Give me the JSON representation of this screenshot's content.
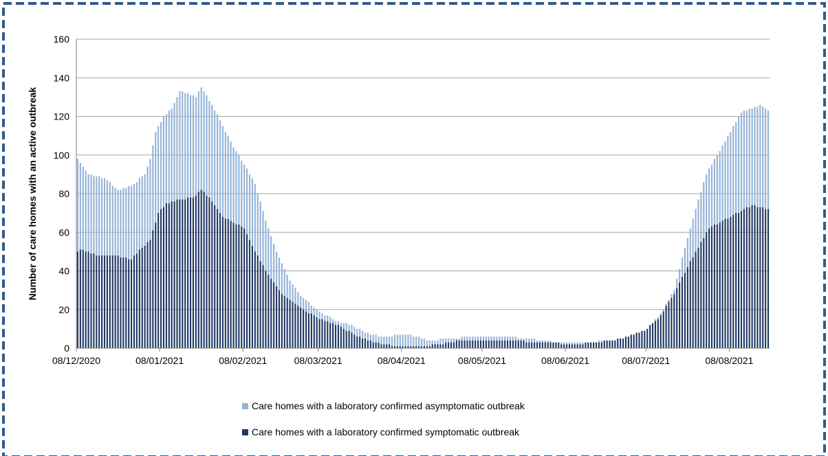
{
  "colors": {
    "asymptomatic": "#95B3D7",
    "symptomatic": "#1F3864",
    "border": "#2E5C8A",
    "grid": "#A6A6A6"
  },
  "chart_data": {
    "type": "bar",
    "stacked": true,
    "title": "",
    "xlabel": "",
    "ylabel": "Number of care homes with an active outbreak",
    "ylim": [
      0,
      160
    ],
    "yticks": [
      0,
      20,
      40,
      60,
      80,
      100,
      120,
      140,
      160
    ],
    "grid": true,
    "legend_position": "bottom",
    "x_start": "08/12/2020",
    "x_end": "22/08/2021",
    "xtick_labels": [
      "08/12/2020",
      "08/01/2021",
      "08/02/2021",
      "08/03/2021",
      "08/04/2021",
      "08/05/2021",
      "08/06/2021",
      "08/07/2021",
      "08/08/2021"
    ],
    "series": [
      {
        "name": "Care homes with a laboratory confirmed symptomatic outbreak",
        "color": "#1F3864",
        "anchors": [
          [
            "08/12/2020",
            50
          ],
          [
            "10/12/2020",
            51
          ],
          [
            "15/12/2020",
            48
          ],
          [
            "22/12/2020",
            48
          ],
          [
            "28/12/2020",
            46
          ],
          [
            "01/01/2021",
            52
          ],
          [
            "04/01/2021",
            56
          ],
          [
            "07/01/2021",
            70
          ],
          [
            "10/01/2021",
            75
          ],
          [
            "15/01/2021",
            77
          ],
          [
            "20/01/2021",
            78
          ],
          [
            "23/01/2021",
            82
          ],
          [
            "26/01/2021",
            78
          ],
          [
            "31/01/2021",
            68
          ],
          [
            "08/02/2021",
            62
          ],
          [
            "12/02/2021",
            50
          ],
          [
            "16/02/2021",
            40
          ],
          [
            "22/02/2021",
            28
          ],
          [
            "01/03/2021",
            21
          ],
          [
            "08/03/2021",
            15
          ],
          [
            "15/03/2021",
            12
          ],
          [
            "22/03/2021",
            6
          ],
          [
            "29/03/2021",
            3
          ],
          [
            "05/04/2021",
            1
          ],
          [
            "15/04/2021",
            1
          ],
          [
            "22/04/2021",
            2
          ],
          [
            "29/04/2021",
            4
          ],
          [
            "15/05/2021",
            4
          ],
          [
            "01/06/2021",
            3
          ],
          [
            "10/06/2021",
            2
          ],
          [
            "20/06/2021",
            3
          ],
          [
            "28/06/2021",
            5
          ],
          [
            "05/07/2021",
            8
          ],
          [
            "12/07/2021",
            15
          ],
          [
            "18/07/2021",
            28
          ],
          [
            "24/07/2021",
            45
          ],
          [
            "31/07/2021",
            62
          ],
          [
            "05/08/2021",
            66
          ],
          [
            "12/08/2021",
            71
          ],
          [
            "16/08/2021",
            74
          ],
          [
            "22/08/2021",
            72
          ]
        ]
      },
      {
        "name": "Care homes with a laboratory confirmed asymptomatic outbreak",
        "color": "#95B3D7",
        "anchors": [
          [
            "08/12/2020",
            98
          ],
          [
            "12/12/2020",
            90
          ],
          [
            "18/12/2020",
            88
          ],
          [
            "23/12/2020",
            82
          ],
          [
            "28/12/2020",
            84
          ],
          [
            "02/01/2021",
            90
          ],
          [
            "04/01/2021",
            98
          ],
          [
            "06/01/2021",
            112
          ],
          [
            "09/01/2021",
            120
          ],
          [
            "12/01/2021",
            124
          ],
          [
            "15/01/2021",
            133
          ],
          [
            "21/01/2021",
            130
          ],
          [
            "23/01/2021",
            135
          ],
          [
            "27/01/2021",
            126
          ],
          [
            "31/01/2021",
            115
          ],
          [
            "04/02/2021",
            104
          ],
          [
            "08/02/2021",
            95
          ],
          [
            "12/02/2021",
            85
          ],
          [
            "16/02/2021",
            66
          ],
          [
            "20/02/2021",
            50
          ],
          [
            "25/02/2021",
            35
          ],
          [
            "01/03/2021",
            27
          ],
          [
            "08/03/2021",
            19
          ],
          [
            "14/03/2021",
            14
          ],
          [
            "20/03/2021",
            12
          ],
          [
            "25/03/2021",
            8
          ],
          [
            "31/03/2021",
            6
          ],
          [
            "10/04/2021",
            7
          ],
          [
            "18/04/2021",
            4
          ],
          [
            "25/04/2021",
            5
          ],
          [
            "05/05/2021",
            6
          ],
          [
            "15/05/2021",
            6
          ],
          [
            "25/05/2021",
            5
          ],
          [
            "05/06/2021",
            3
          ],
          [
            "15/06/2021",
            3
          ],
          [
            "25/06/2021",
            4
          ],
          [
            "01/07/2021",
            6
          ],
          [
            "08/07/2021",
            10
          ],
          [
            "13/07/2021",
            18
          ],
          [
            "18/07/2021",
            30
          ],
          [
            "22/07/2021",
            52
          ],
          [
            "26/07/2021",
            72
          ],
          [
            "30/07/2021",
            90
          ],
          [
            "03/08/2021",
            100
          ],
          [
            "08/08/2021",
            112
          ],
          [
            "12/08/2021",
            122
          ],
          [
            "16/08/2021",
            124
          ],
          [
            "19/08/2021",
            126
          ],
          [
            "22/08/2021",
            123
          ]
        ]
      }
    ]
  }
}
